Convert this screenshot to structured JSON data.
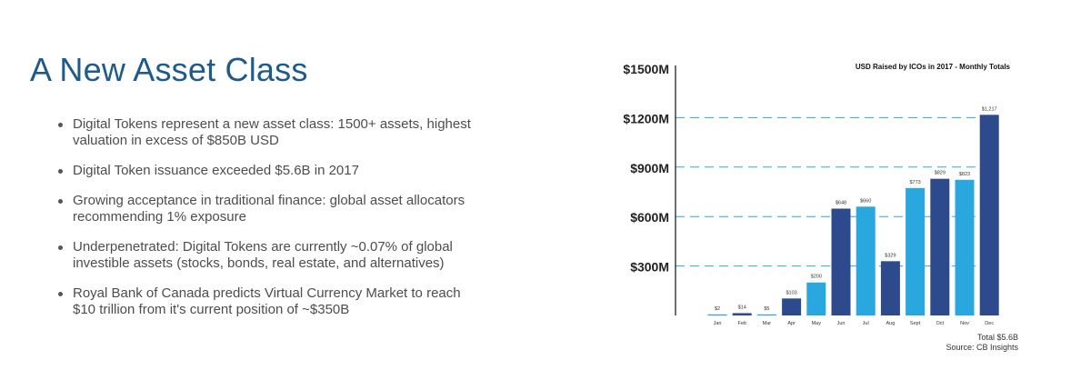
{
  "slide": {
    "title": "A New Asset Class",
    "bullets": [
      "Digital Tokens represent a new asset class: 1500+ assets, highest valuation in excess of $850B USD",
      "Digital Token issuance exceeded $5.6B in 2017",
      "Growing acceptance in traditional finance: global asset allocators recommending 1% exposure",
      "Underpenetrated: Digital Tokens are currently ~0.07% of global investible assets (stocks, bonds, real estate, and alternatives)",
      "Royal Bank of Canada predicts Virtual Currency Market to reach $10 trillion from it's current position of ~$350B"
    ]
  },
  "chart_data": {
    "type": "bar",
    "title": "USD Raised by ICOs in 2017 - Monthly Totals",
    "categories": [
      "Jan",
      "Feb",
      "Mar",
      "Apr",
      "May",
      "Jun",
      "Jul",
      "Aug",
      "Sept",
      "Oct",
      "Nov",
      "Dec"
    ],
    "values": [
      2,
      14,
      5,
      103,
      200,
      648,
      660,
      329,
      773,
      829,
      823,
      1217
    ],
    "value_labels": [
      "$2",
      "$14",
      "$5",
      "$103",
      "$200",
      "$648",
      "$660",
      "$329",
      "$773",
      "$829",
      "$823",
      "$1,217"
    ],
    "bar_colors": [
      "#29a8df",
      "#2c4a8c",
      "#29a8df",
      "#2c4a8c",
      "#29a8df",
      "#2c4a8c",
      "#29a8df",
      "#2c4a8c",
      "#29a8df",
      "#2c4a8c",
      "#29a8df",
      "#2c4a8c"
    ],
    "yticks": [
      300,
      600,
      900,
      1200,
      1500
    ],
    "ytick_labels": [
      "$300M",
      "$600M",
      "$900M",
      "$1200M",
      "$1500M"
    ],
    "ylim": [
      0,
      1500
    ],
    "gridlines": "dashed",
    "grid_color": "#29a8df",
    "total": "Total $5.6B",
    "source": "Source: CB Insights"
  }
}
